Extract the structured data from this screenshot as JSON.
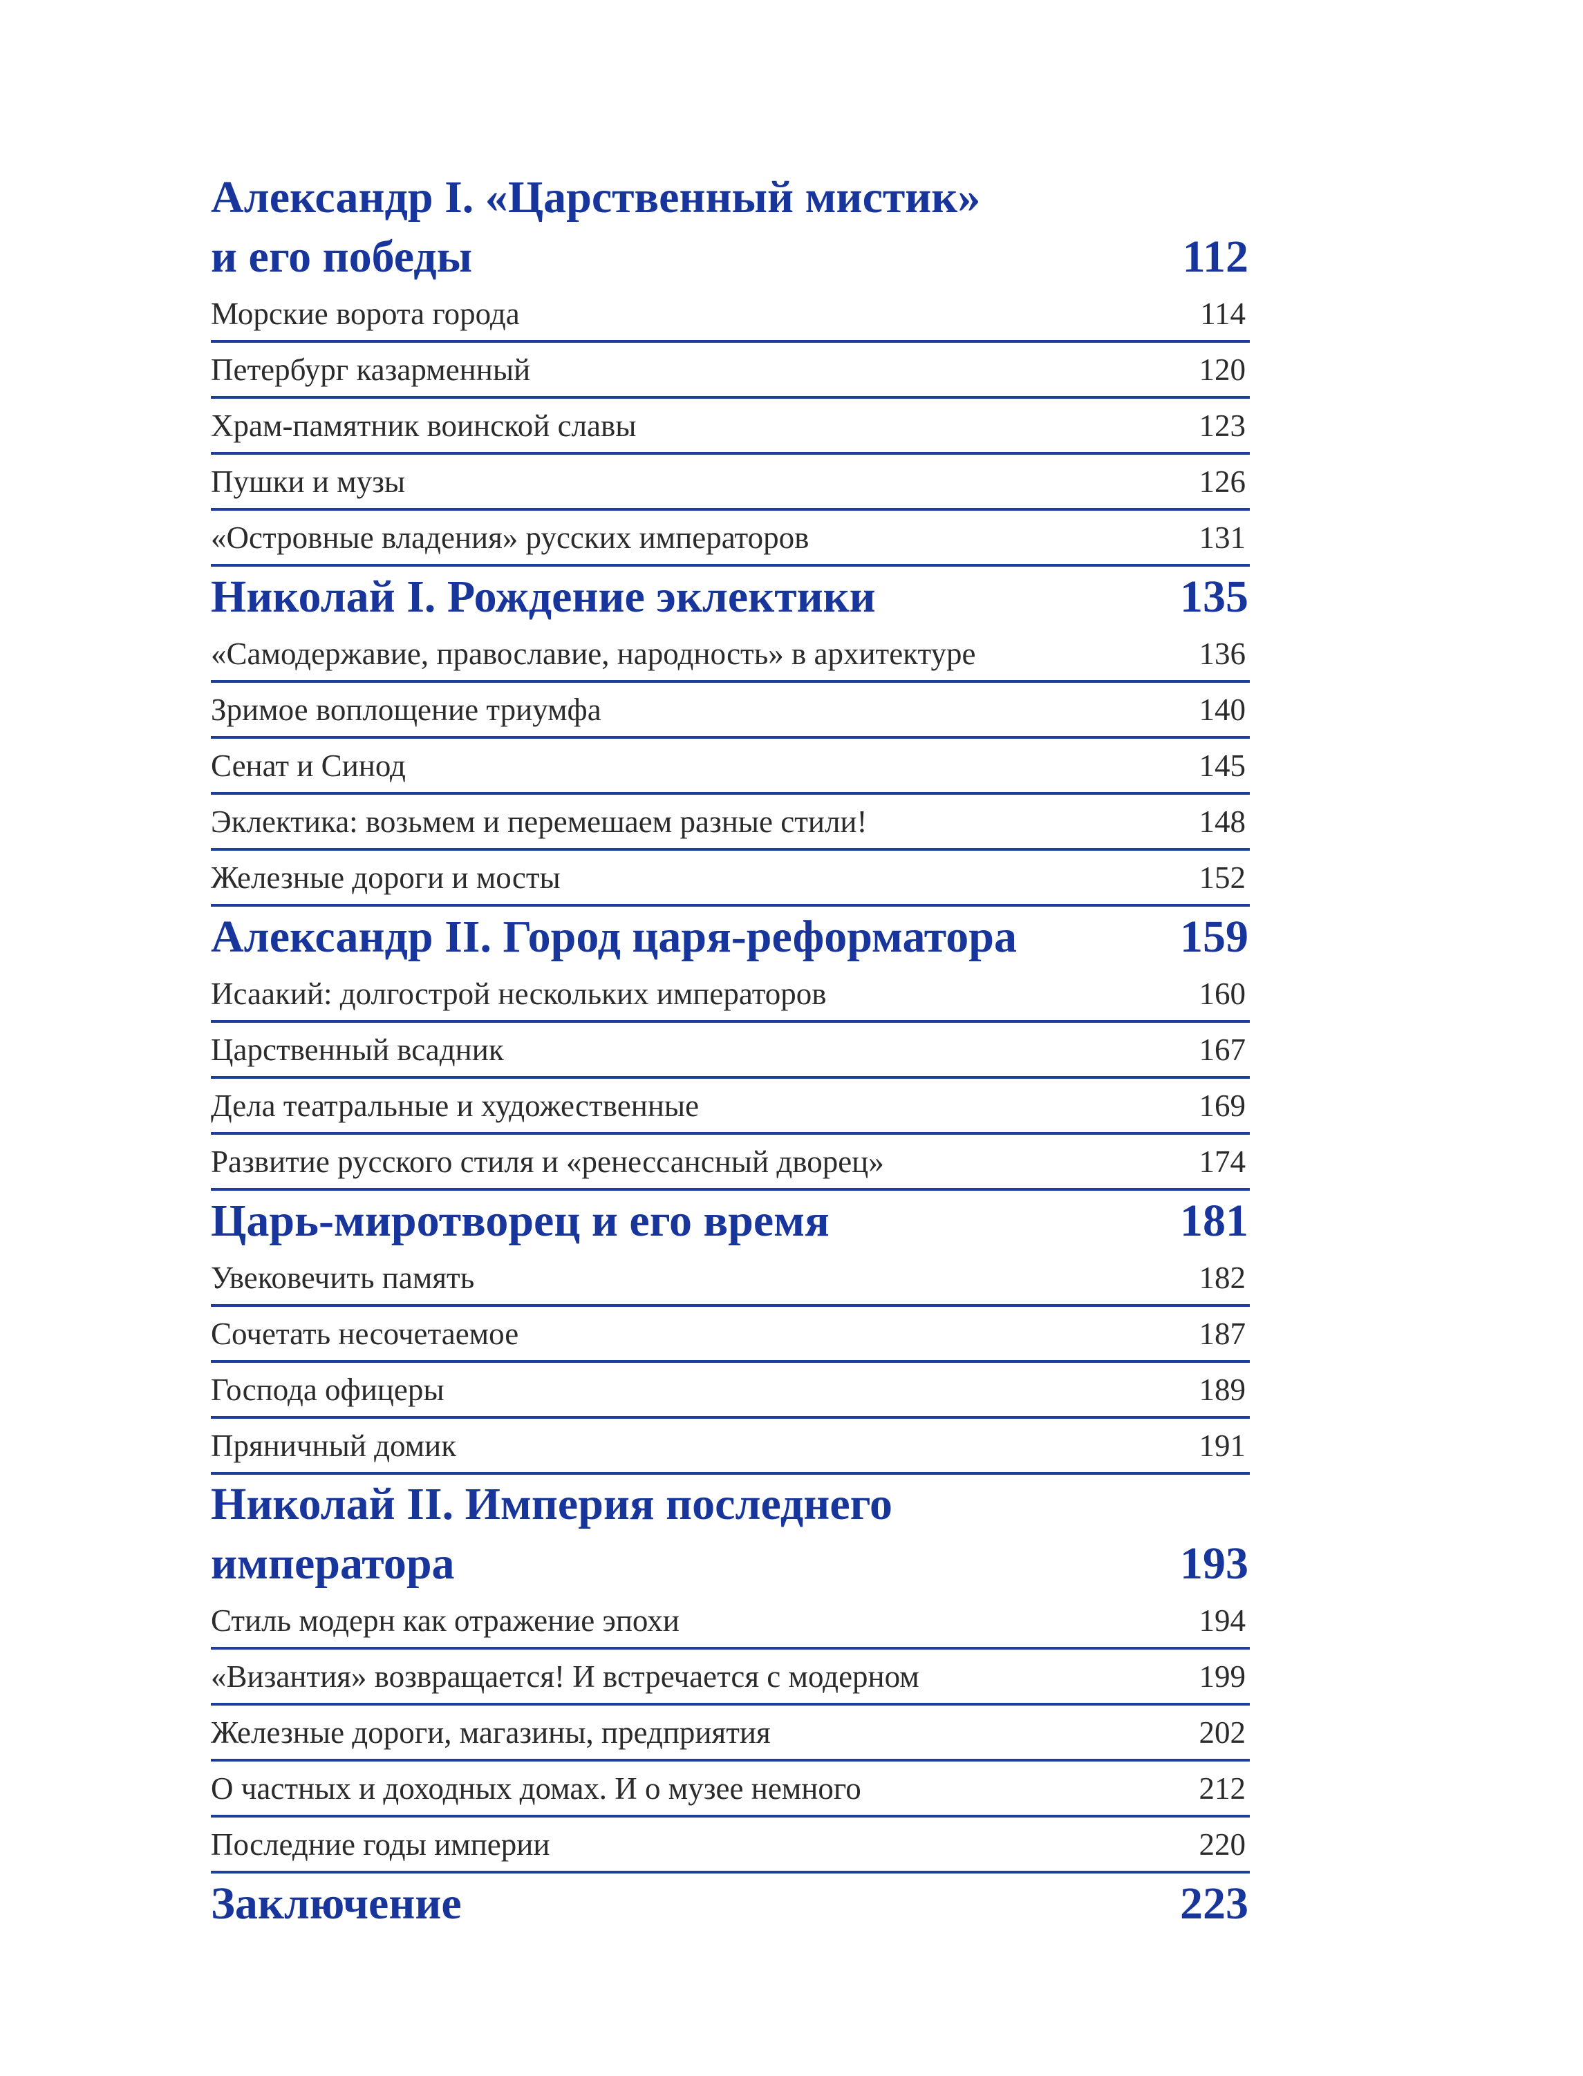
{
  "sections": [
    {
      "title": "Александр I. «Царственный мистик»\nи его победы",
      "page": "112",
      "items": [
        {
          "title": "Морские ворота города",
          "page": "114"
        },
        {
          "title": "Петербург казарменный",
          "page": "120"
        },
        {
          "title": "Храм-памятник воинской славы",
          "page": "123"
        },
        {
          "title": "Пушки и музы",
          "page": "126"
        },
        {
          "title": "«Островные владения» русских императоров",
          "page": "131"
        }
      ]
    },
    {
      "title": "Николай I. Рождение эклектики",
      "page": "135",
      "items": [
        {
          "title": "«Самодержавие, православие, народность» в архитектуре",
          "page": "136"
        },
        {
          "title": "Зримое воплощение триумфа",
          "page": "140"
        },
        {
          "title": "Сенат и Синод",
          "page": "145"
        },
        {
          "title": "Эклектика: возьмем и перемешаем разные стили!",
          "page": "148"
        },
        {
          "title": "Железные дороги и мосты",
          "page": "152"
        }
      ]
    },
    {
      "title": "Александр II. Город царя-реформатора",
      "page": "159",
      "items": [
        {
          "title": "Исаакий: долгострой нескольких императоров",
          "page": "160"
        },
        {
          "title": "Царственный всадник",
          "page": "167"
        },
        {
          "title": "Дела театральные и художественные",
          "page": "169"
        },
        {
          "title": "Развитие русского стиля и «ренессансный дворец»",
          "page": "174"
        }
      ]
    },
    {
      "title": "Царь-миротворец и его время",
      "page": "181",
      "items": [
        {
          "title": "Увековечить память",
          "page": "182"
        },
        {
          "title": "Сочетать несочетаемое",
          "page": "187"
        },
        {
          "title": "Господа офицеры",
          "page": "189"
        },
        {
          "title": "Пряничный домик",
          "page": "191"
        }
      ]
    },
    {
      "title": "Николай II. Империя последнего\nимператора",
      "page": "193",
      "items": [
        {
          "title": "Стиль модерн как отражение эпохи",
          "page": "194"
        },
        {
          "title": "«Византия» возвращается! И встречается с модерном",
          "page": "199"
        },
        {
          "title": "Железные дороги, магазины, предприятия",
          "page": "202"
        },
        {
          "title": "О частных и доходных домах. И о музее немного",
          "page": "212"
        },
        {
          "title": "Последние годы империи",
          "page": "220"
        }
      ]
    },
    {
      "title": "Заключение",
      "page": "223",
      "items": []
    }
  ],
  "colors": {
    "accent": "#17359a",
    "rule": "#1d3f9b",
    "text": "#2b2b2b"
  }
}
